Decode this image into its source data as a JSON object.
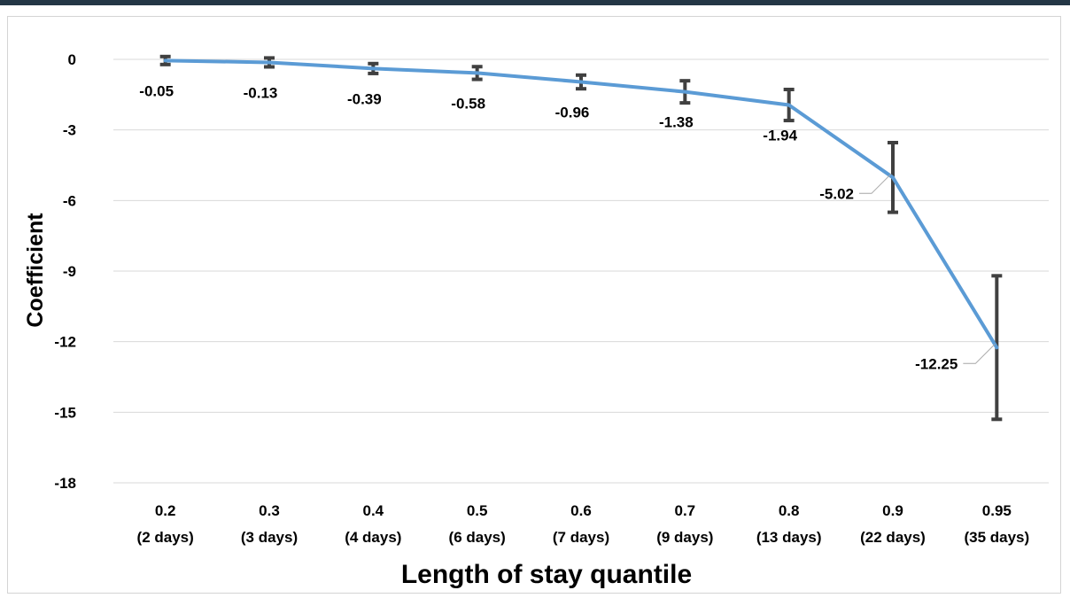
{
  "chart_data": {
    "type": "line",
    "title": "",
    "xlabel": "Length of stay quantile",
    "ylabel": "Coefficient",
    "categories": [
      [
        "0.2",
        "(2 days)"
      ],
      [
        "0.3",
        "(3 days)"
      ],
      [
        "0.4",
        "(4 days)"
      ],
      [
        "0.5",
        "(6 days)"
      ],
      [
        "0.6",
        "(7 days)"
      ],
      [
        "0.7",
        "(9 days)"
      ],
      [
        "0.8",
        "(13 days)"
      ],
      [
        "0.9",
        "(22 days)"
      ],
      [
        "0.95",
        "(35 days)"
      ]
    ],
    "series": [
      {
        "values": [
          -0.05,
          -0.13,
          -0.39,
          -0.58,
          -0.96,
          -1.38,
          -1.94,
          -5.02,
          -12.25
        ],
        "labels": [
          "-0.05",
          "-0.13",
          "-0.39",
          "-0.58",
          "-0.96",
          "-1.38",
          "-1.94",
          "-5.02",
          "-12.25"
        ],
        "error_low": [
          -0.22,
          -0.32,
          -0.6,
          -0.85,
          -1.25,
          -1.85,
          -2.6,
          -6.5,
          -15.3
        ],
        "error_high": [
          0.12,
          0.06,
          -0.18,
          -0.31,
          -0.67,
          -0.91,
          -1.28,
          -3.54,
          -9.2
        ],
        "color": "#5b9bd5"
      }
    ],
    "ylim": [
      -18,
      0
    ],
    "yticks": [
      0,
      -3,
      -6,
      -9,
      -12,
      -15,
      -18
    ],
    "grid": true,
    "legend": "none",
    "errorbar_color": "#404040"
  }
}
